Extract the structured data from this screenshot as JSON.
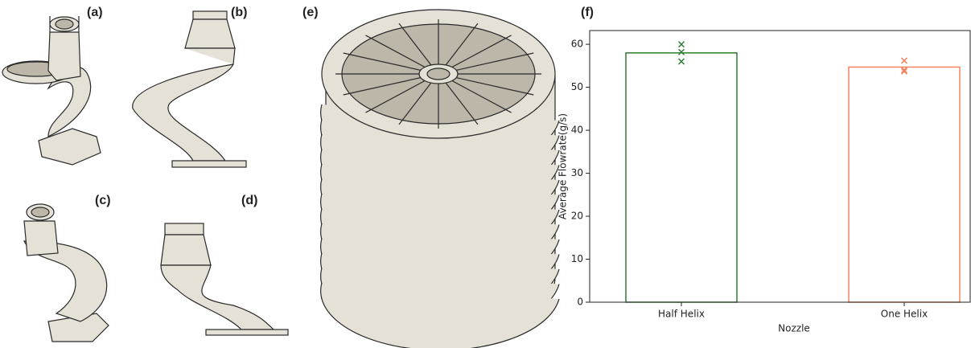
{
  "panels": [
    {
      "label": "(a)"
    },
    {
      "label": "(b)"
    },
    {
      "label": "(c)"
    },
    {
      "label": "(d)"
    },
    {
      "label": "(e)"
    }
  ],
  "chart_data": {
    "type": "bar",
    "panel_label": "(f)",
    "x_label": "Nozzle",
    "y_label": "Average Flowrate(g/s)",
    "categories": [
      "Half Helix",
      "One Helix"
    ],
    "values": [
      58,
      54.7
    ],
    "colors": [
      "#2e7d32",
      "#f4845f"
    ],
    "points": [
      [
        60,
        58.2,
        56
      ],
      [
        56.2,
        54,
        53.7
      ]
    ],
    "ylim": [
      0,
      63.2
    ],
    "yticks": [
      0,
      10,
      20,
      30,
      40,
      50,
      60
    ]
  }
}
